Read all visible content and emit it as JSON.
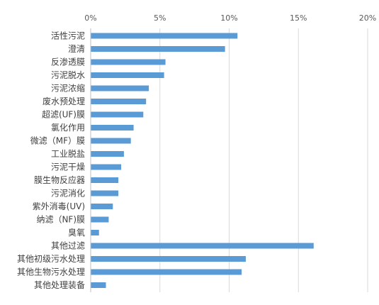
{
  "colors": {
    "bar": "#5b9bd5",
    "grid": "#d9d9d9",
    "axis": "#bfbfbf"
  },
  "chart_data": {
    "type": "bar",
    "orientation": "horizontal",
    "title": "",
    "xlabel": "",
    "ylabel": "",
    "xlim": [
      0,
      20
    ],
    "x_ticks": [
      "0%",
      "5%",
      "10%",
      "15%",
      "20%"
    ],
    "x_tick_values": [
      0,
      5,
      10,
      15,
      20
    ],
    "x_axis_position": "top",
    "grid": true,
    "legend": "none",
    "categories": [
      "活性污泥",
      "澄清",
      "反渗透膜",
      "污泥脱水",
      "污泥浓缩",
      "废水预处理",
      "超滤(UF)膜",
      "氯化作用",
      "微滤（MF）膜",
      "工业脱盐",
      "污泥干燥",
      "膜生物反应器",
      "污泥消化",
      "紫外消毒(UV)",
      "纳滤（NF)膜",
      "臭氧",
      "其他过滤",
      "其他初级污水处理",
      "其他生物污水处理",
      "其他处理装备"
    ],
    "values": [
      10.6,
      9.7,
      5.4,
      5.3,
      4.2,
      4.0,
      3.8,
      3.1,
      2.9,
      2.4,
      2.2,
      2.0,
      2.0,
      1.6,
      1.3,
      0.6,
      16.1,
      11.2,
      10.9,
      1.1
    ]
  }
}
